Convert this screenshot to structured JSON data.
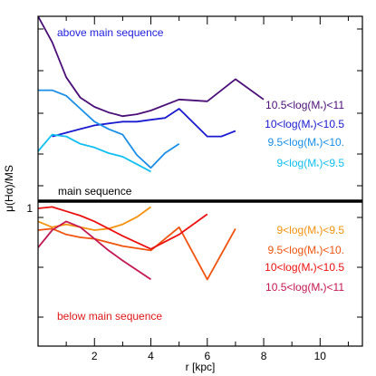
{
  "chart_data": {
    "type": "line",
    "xlabel": "r [kpc]",
    "ylabel": "μ(Hα)/MS",
    "xlim": [
      0,
      11.5
    ],
    "xticks": [
      2,
      4,
      6,
      8,
      10
    ],
    "xtick_labels": [
      "2",
      "4",
      "6",
      "8",
      "10"
    ],
    "minor_xticks": [
      1,
      3,
      5,
      7,
      9,
      11
    ],
    "ytick_labels": [
      "1"
    ],
    "grid": false,
    "divider_value": 1,
    "panels": [
      {
        "id": "above",
        "ylim": [
          0,
          1
        ],
        "region_label": "above main sequence",
        "region_color": "#1e1ee0",
        "bottom_label": "main sequence",
        "series": [
          {
            "name": "10.5<log(M*)<11",
            "label_parts": [
              "10.5<log(M",
              "*",
              ")<11"
            ],
            "color": "#4a0f78",
            "x": [
              0,
              0.5,
              1,
              1.5,
              2,
              2.5,
              3,
              3.5,
              4,
              5,
              6,
              7,
              8
            ],
            "y": [
              1.0,
              0.86,
              0.67,
              0.56,
              0.51,
              0.48,
              0.46,
              0.47,
              0.49,
              0.55,
              0.54,
              0.66,
              0.55
            ]
          },
          {
            "name": "10<log(M*)<10.5",
            "label_parts": [
              "10<log(M",
              "*",
              ")<10.5"
            ],
            "color": "#1a1ad0",
            "x": [
              0.5,
              1,
              1.5,
              2,
              2.5,
              3,
              3.5,
              4,
              4.5,
              5,
              6,
              6.5,
              7
            ],
            "y": [
              0.35,
              0.37,
              0.39,
              0.41,
              0.42,
              0.43,
              0.43,
              0.44,
              0.45,
              0.5,
              0.35,
              0.35,
              0.38
            ]
          },
          {
            "name": "9.5<log(M*)<10.",
            "label_parts": [
              "9.5<log(M",
              "*",
              ")<10."
            ],
            "color": "#1a8ee8",
            "x": [
              0,
              0.5,
              1,
              1.5,
              2,
              2.5,
              3,
              3.5,
              4,
              4.5,
              5
            ],
            "y": [
              0.6,
              0.6,
              0.57,
              0.5,
              0.43,
              0.39,
              0.36,
              0.25,
              0.18,
              0.26,
              0.31
            ]
          },
          {
            "name": "9<log(M*)<9.5",
            "label_parts": [
              "9<log(M",
              "*",
              ")<9.5"
            ],
            "color": "#11bff2",
            "x": [
              0,
              0.5,
              1,
              1.5,
              2,
              2.5,
              3,
              3.5,
              4
            ],
            "y": [
              0.27,
              0.36,
              0.35,
              0.31,
              0.29,
              0.26,
              0.24,
              0.2,
              0.16
            ]
          }
        ]
      },
      {
        "id": "below",
        "ylim": [
          0,
          1
        ],
        "region_label": "below main sequence",
        "region_color": "#e01818",
        "series": [
          {
            "name": "9<log(M*)<9.5",
            "label_parts": [
              "9<log(M",
              "*",
              ")<9.5"
            ],
            "color": "#f5920f",
            "x": [
              0,
              0.5,
              1,
              1.5,
              2,
              2.5,
              3,
              3.5,
              4
            ],
            "y": [
              0.86,
              0.82,
              0.84,
              0.82,
              0.8,
              0.81,
              0.84,
              0.89,
              0.96
            ]
          },
          {
            "name": "9.5<log(M*)<10.",
            "label_parts": [
              "9.5<log(M",
              "*",
              ")<10."
            ],
            "color": "#f0540f",
            "x": [
              0,
              0.5,
              1,
              1.5,
              2,
              3,
              4,
              5,
              6,
              7
            ],
            "y": [
              0.8,
              0.81,
              0.77,
              0.75,
              0.74,
              0.69,
              0.66,
              0.82,
              0.46,
              0.81
            ]
          },
          {
            "name": "10<log(M*)<10.5",
            "label_parts": [
              "10<log(M",
              "*",
              ")<10.5"
            ],
            "color": "#ed1010",
            "x": [
              0,
              0.5,
              1,
              1.5,
              2,
              3,
              4,
              5,
              6
            ],
            "y": [
              0.95,
              0.96,
              0.93,
              0.9,
              0.86,
              0.76,
              0.67,
              0.77,
              0.91
            ]
          },
          {
            "name": "10.5<log(M*)<11",
            "label_parts": [
              "10.5<log(M",
              "*",
              ")<11"
            ],
            "color": "#c41850",
            "x": [
              0,
              0.5,
              1,
              1.5,
              2,
              2.5,
              3,
              4
            ],
            "y": [
              0.68,
              0.8,
              0.86,
              0.82,
              0.74,
              0.66,
              0.59,
              0.46
            ]
          }
        ]
      }
    ]
  }
}
